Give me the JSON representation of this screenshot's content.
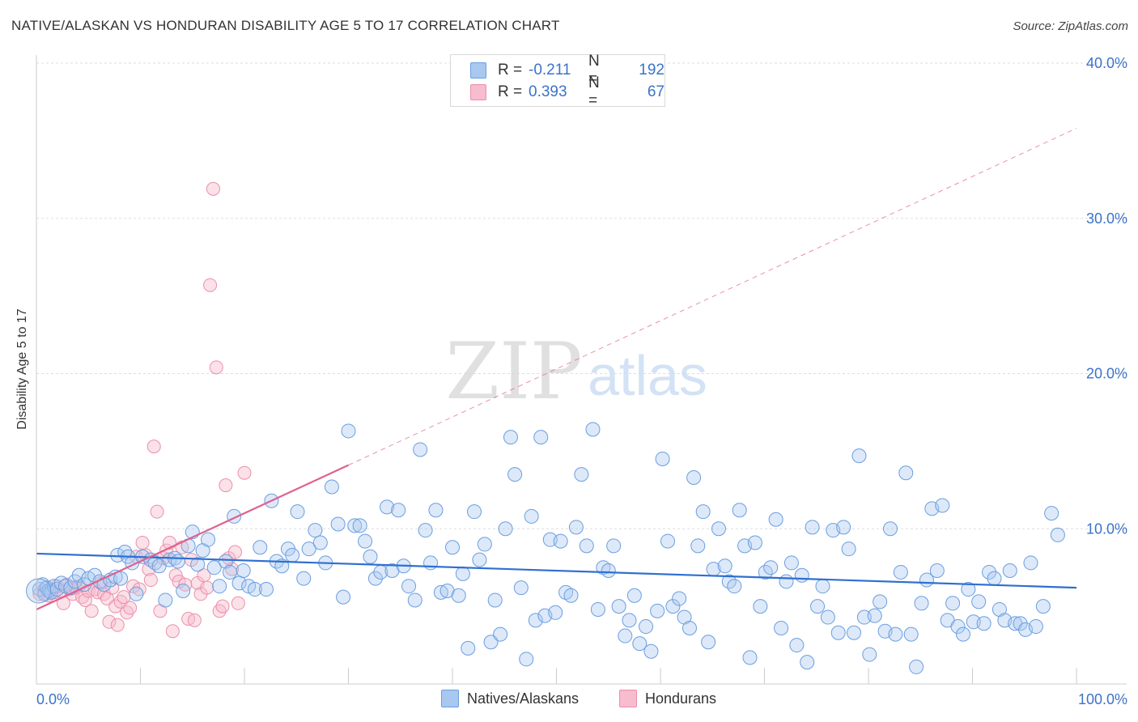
{
  "header": {
    "title": "NATIVE/ALASKAN VS HONDURAN DISABILITY AGE 5 TO 17 CORRELATION CHART",
    "source": "Source: ZipAtlas.com"
  },
  "watermark": {
    "zip": "ZIP",
    "atlas": "atlas"
  },
  "legend": {
    "rows": [
      {
        "r_label": "R =",
        "r_value": "-0.211",
        "n_label": "N =",
        "n_value": "192"
      },
      {
        "r_label": "R =",
        "r_value": "0.393",
        "n_label": "N =",
        "n_value": "67"
      }
    ]
  },
  "bottom_legend": {
    "natives": "Natives/Alaskans",
    "hondurans": "Hondurans"
  },
  "colors": {
    "natives_fill": "#a9c8f0",
    "natives_stroke": "#6a9ee0",
    "natives_line": "#2f6fd0",
    "hondurans_fill": "#f7bccd",
    "hondurans_stroke": "#ec8fac",
    "hondurans_line": "#e0608e",
    "axis_label": "#3b73c9",
    "grid": "#dddddd"
  },
  "chart_data": {
    "type": "scatter",
    "title": "NATIVE/ALASKAN VS HONDURAN DISABILITY AGE 5 TO 17 CORRELATION CHART",
    "xlabel": "",
    "ylabel": "Disability Age 5 to 17",
    "xlim": [
      0,
      100
    ],
    "ylim": [
      0,
      40
    ],
    "x_tick_labels": [
      "0.0%",
      "100.0%"
    ],
    "y_ticks": [
      10,
      20,
      30,
      40
    ],
    "y_tick_labels": [
      "10.0%",
      "20.0%",
      "30.0%",
      "40.0%"
    ],
    "grid": true,
    "series": [
      {
        "name": "Natives/Alaskans",
        "R": -0.211,
        "N": 192,
        "trend": {
          "x": [
            0,
            100
          ],
          "y": [
            8.4,
            6.2
          ]
        },
        "points": [
          [
            0.3,
            6.1
          ],
          [
            0.6,
            6.4
          ],
          [
            0.8,
            5.8
          ],
          [
            1.0,
            6.2
          ],
          [
            1.2,
            6.0
          ],
          [
            1.4,
            5.9
          ],
          [
            1.7,
            6.3
          ],
          [
            2.0,
            6.1
          ],
          [
            2.4,
            6.5
          ],
          [
            2.8,
            6.3
          ],
          [
            3.3,
            6.2
          ],
          [
            3.7,
            6.6
          ],
          [
            4.1,
            7.0
          ],
          [
            4.6,
            6.4
          ],
          [
            5.0,
            6.8
          ],
          [
            5.6,
            7.0
          ],
          [
            6.1,
            6.6
          ],
          [
            6.5,
            6.4
          ],
          [
            7.1,
            6.7
          ],
          [
            7.6,
            6.9
          ],
          [
            8.1,
            6.8
          ],
          [
            7.8,
            8.3
          ],
          [
            8.5,
            8.5
          ],
          [
            8.8,
            8.2
          ],
          [
            9.2,
            7.8
          ],
          [
            9.6,
            5.8
          ],
          [
            10.2,
            8.2
          ],
          [
            11.0,
            8.0
          ],
          [
            11.4,
            7.8
          ],
          [
            11.8,
            7.6
          ],
          [
            12.4,
            5.4
          ],
          [
            12.8,
            8.0
          ],
          [
            13.3,
            8.1
          ],
          [
            13.6,
            7.9
          ],
          [
            14.1,
            6.0
          ],
          [
            14.6,
            8.9
          ],
          [
            15.0,
            9.8
          ],
          [
            15.5,
            7.7
          ],
          [
            16.0,
            8.6
          ],
          [
            16.5,
            9.3
          ],
          [
            17.1,
            7.5
          ],
          [
            17.6,
            6.3
          ],
          [
            18.2,
            7.9
          ],
          [
            18.6,
            7.2
          ],
          [
            19.0,
            10.8
          ],
          [
            19.5,
            6.5
          ],
          [
            19.9,
            7.3
          ],
          [
            20.4,
            6.3
          ],
          [
            21.0,
            6.1
          ],
          [
            21.5,
            8.8
          ],
          [
            22.1,
            6.1
          ],
          [
            22.6,
            11.8
          ],
          [
            23.1,
            7.9
          ],
          [
            23.6,
            7.6
          ],
          [
            24.2,
            8.7
          ],
          [
            24.6,
            8.3
          ],
          [
            25.1,
            11.1
          ],
          [
            25.7,
            6.8
          ],
          [
            26.2,
            8.7
          ],
          [
            26.8,
            9.9
          ],
          [
            27.3,
            9.1
          ],
          [
            27.8,
            7.8
          ],
          [
            28.4,
            12.7
          ],
          [
            29.0,
            10.3
          ],
          [
            29.5,
            5.6
          ],
          [
            30.0,
            16.3
          ],
          [
            30.6,
            10.2
          ],
          [
            31.1,
            10.2
          ],
          [
            31.6,
            9.2
          ],
          [
            32.1,
            8.2
          ],
          [
            32.6,
            6.8
          ],
          [
            33.1,
            7.2
          ],
          [
            33.7,
            11.4
          ],
          [
            34.2,
            7.3
          ],
          [
            34.8,
            11.2
          ],
          [
            35.3,
            7.6
          ],
          [
            35.8,
            6.3
          ],
          [
            36.4,
            5.4
          ],
          [
            36.9,
            15.1
          ],
          [
            37.4,
            9.9
          ],
          [
            37.9,
            7.8
          ],
          [
            38.4,
            11.2
          ],
          [
            38.9,
            5.9
          ],
          [
            39.5,
            6.0
          ],
          [
            40.0,
            8.8
          ],
          [
            40.6,
            5.7
          ],
          [
            41.0,
            7.1
          ],
          [
            41.5,
            2.3
          ],
          [
            42.1,
            11.1
          ],
          [
            42.6,
            8.0
          ],
          [
            43.1,
            9.0
          ],
          [
            43.7,
            2.7
          ],
          [
            44.1,
            5.4
          ],
          [
            44.6,
            3.2
          ],
          [
            45.1,
            10.0
          ],
          [
            45.6,
            15.9
          ],
          [
            46.0,
            13.5
          ],
          [
            46.6,
            6.2
          ],
          [
            47.1,
            1.6
          ],
          [
            47.6,
            10.8
          ],
          [
            48.0,
            4.1
          ],
          [
            48.5,
            15.9
          ],
          [
            48.9,
            4.4
          ],
          [
            49.4,
            9.3
          ],
          [
            49.9,
            4.6
          ],
          [
            50.4,
            9.2
          ],
          [
            50.9,
            5.9
          ],
          [
            51.4,
            5.7
          ],
          [
            51.9,
            10.1
          ],
          [
            52.4,
            13.5
          ],
          [
            52.9,
            8.9
          ],
          [
            53.5,
            16.4
          ],
          [
            54.0,
            4.8
          ],
          [
            54.5,
            7.5
          ],
          [
            55.0,
            7.3
          ],
          [
            55.5,
            8.9
          ],
          [
            56.0,
            5.0
          ],
          [
            56.6,
            3.1
          ],
          [
            57.0,
            4.1
          ],
          [
            57.5,
            5.7
          ],
          [
            58.0,
            2.6
          ],
          [
            58.6,
            3.7
          ],
          [
            59.1,
            2.1
          ],
          [
            59.7,
            4.7
          ],
          [
            60.2,
            14.5
          ],
          [
            60.7,
            9.2
          ],
          [
            61.2,
            5.0
          ],
          [
            61.8,
            5.5
          ],
          [
            62.3,
            4.3
          ],
          [
            62.8,
            3.6
          ],
          [
            63.2,
            13.3
          ],
          [
            63.6,
            8.9
          ],
          [
            64.1,
            11.1
          ],
          [
            64.6,
            2.7
          ],
          [
            65.1,
            7.4
          ],
          [
            65.6,
            10.0
          ],
          [
            66.2,
            7.6
          ],
          [
            66.6,
            6.6
          ],
          [
            67.1,
            6.3
          ],
          [
            67.6,
            11.2
          ],
          [
            68.1,
            8.9
          ],
          [
            68.6,
            1.7
          ],
          [
            69.1,
            9.1
          ],
          [
            69.6,
            5.0
          ],
          [
            70.1,
            7.2
          ],
          [
            70.6,
            7.5
          ],
          [
            71.1,
            10.6
          ],
          [
            71.6,
            3.6
          ],
          [
            72.1,
            6.6
          ],
          [
            72.6,
            7.8
          ],
          [
            73.1,
            2.5
          ],
          [
            73.6,
            7.0
          ],
          [
            74.1,
            1.4
          ],
          [
            74.6,
            10.1
          ],
          [
            75.1,
            5.0
          ],
          [
            75.6,
            6.3
          ],
          [
            76.1,
            4.3
          ],
          [
            76.6,
            9.9
          ],
          [
            77.1,
            3.3
          ],
          [
            77.6,
            10.1
          ],
          [
            78.1,
            8.7
          ],
          [
            78.6,
            3.3
          ],
          [
            79.1,
            14.7
          ],
          [
            79.6,
            4.3
          ],
          [
            80.1,
            1.9
          ],
          [
            80.6,
            4.4
          ],
          [
            81.1,
            5.3
          ],
          [
            81.6,
            3.4
          ],
          [
            82.1,
            10.0
          ],
          [
            82.6,
            3.2
          ],
          [
            83.1,
            7.2
          ],
          [
            83.6,
            13.6
          ],
          [
            84.1,
            3.2
          ],
          [
            84.6,
            1.1
          ],
          [
            85.1,
            5.2
          ],
          [
            85.6,
            6.7
          ],
          [
            86.1,
            11.3
          ],
          [
            86.6,
            7.3
          ],
          [
            87.1,
            11.5
          ],
          [
            87.6,
            4.1
          ],
          [
            88.1,
            5.2
          ],
          [
            88.6,
            3.7
          ],
          [
            89.1,
            3.2
          ],
          [
            89.6,
            6.1
          ],
          [
            90.1,
            4.0
          ],
          [
            90.6,
            5.3
          ],
          [
            91.1,
            3.9
          ],
          [
            91.6,
            7.2
          ],
          [
            92.1,
            6.8
          ],
          [
            92.6,
            4.8
          ],
          [
            93.1,
            4.1
          ],
          [
            93.6,
            7.3
          ],
          [
            94.1,
            3.9
          ],
          [
            94.6,
            3.9
          ],
          [
            95.1,
            3.5
          ],
          [
            95.6,
            7.8
          ],
          [
            96.1,
            3.7
          ],
          [
            96.8,
            5.0
          ],
          [
            97.6,
            11.0
          ],
          [
            98.2,
            9.6
          ]
        ]
      },
      {
        "name": "Hondurans",
        "R": 0.393,
        "N": 67,
        "trend": {
          "x": [
            0,
            30
          ],
          "y": [
            4.8,
            14.1
          ]
        },
        "trend_extension": {
          "x": [
            30,
            100
          ],
          "y": [
            14.1,
            35.8
          ]
        },
        "points": [
          [
            0.3,
            5.8
          ],
          [
            0.6,
            6.0
          ],
          [
            0.9,
            6.2
          ],
          [
            1.1,
            5.7
          ],
          [
            1.4,
            6.1
          ],
          [
            1.7,
            5.9
          ],
          [
            2.0,
            6.3
          ],
          [
            2.3,
            6.0
          ],
          [
            2.6,
            5.2
          ],
          [
            2.9,
            6.4
          ],
          [
            3.2,
            6.1
          ],
          [
            3.5,
            5.8
          ],
          [
            3.8,
            6.2
          ],
          [
            4.1,
            6.3
          ],
          [
            4.4,
            5.6
          ],
          [
            4.7,
            5.4
          ],
          [
            5.0,
            6.0
          ],
          [
            5.3,
            4.7
          ],
          [
            5.6,
            6.1
          ],
          [
            5.9,
            5.9
          ],
          [
            6.2,
            6.5
          ],
          [
            6.5,
            5.8
          ],
          [
            6.8,
            5.5
          ],
          [
            7.0,
            4.0
          ],
          [
            7.3,
            6.2
          ],
          [
            7.6,
            5.0
          ],
          [
            7.8,
            3.8
          ],
          [
            8.1,
            5.3
          ],
          [
            8.4,
            5.6
          ],
          [
            8.7,
            4.6
          ],
          [
            9.0,
            4.9
          ],
          [
            9.3,
            6.3
          ],
          [
            9.6,
            8.2
          ],
          [
            9.9,
            6.1
          ],
          [
            10.2,
            9.1
          ],
          [
            10.5,
            8.3
          ],
          [
            10.8,
            7.4
          ],
          [
            11.0,
            6.7
          ],
          [
            11.3,
            15.3
          ],
          [
            11.6,
            11.1
          ],
          [
            11.9,
            4.7
          ],
          [
            12.2,
            8.1
          ],
          [
            12.5,
            8.6
          ],
          [
            12.8,
            9.1
          ],
          [
            13.1,
            3.4
          ],
          [
            13.4,
            7.0
          ],
          [
            13.7,
            6.6
          ],
          [
            14.0,
            8.8
          ],
          [
            14.3,
            6.4
          ],
          [
            14.6,
            4.2
          ],
          [
            14.9,
            8.0
          ],
          [
            15.2,
            4.1
          ],
          [
            15.5,
            6.5
          ],
          [
            15.8,
            5.8
          ],
          [
            16.1,
            7.0
          ],
          [
            16.4,
            6.2
          ],
          [
            16.7,
            25.7
          ],
          [
            17.0,
            31.9
          ],
          [
            17.3,
            20.4
          ],
          [
            17.6,
            4.7
          ],
          [
            17.9,
            5.0
          ],
          [
            18.2,
            12.8
          ],
          [
            18.5,
            8.1
          ],
          [
            18.8,
            7.4
          ],
          [
            19.1,
            8.5
          ],
          [
            19.4,
            5.2
          ],
          [
            20.0,
            13.6
          ]
        ]
      }
    ]
  }
}
